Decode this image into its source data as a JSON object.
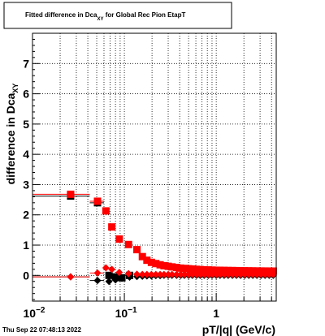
{
  "title": {
    "prefix": "Fitted difference in Dca",
    "subscript": "XY",
    "suffix": " for Global Rec Pion EtapT"
  },
  "y_axis": {
    "label": "difference in Dca",
    "subscript": "XY",
    "ticks": [
      "0",
      "1",
      "2",
      "3",
      "4",
      "5",
      "6",
      "7"
    ]
  },
  "x_axis": {
    "label": "pT/|q| (GeV/c)",
    "tick_labels": [
      {
        "base": "10",
        "exp": "−2"
      },
      {
        "base": "10",
        "exp": "−1"
      },
      {
        "base": "1",
        "exp": ""
      }
    ]
  },
  "timestamp": "Thu Sep 22 07:48:13 2022",
  "colors": {
    "red": "#ff0000",
    "black": "#000000",
    "grid": "#000000"
  },
  "chart_data": {
    "type": "scatter",
    "xscale": "log",
    "xlim": [
      0.01,
      4.5
    ],
    "ylim": [
      -0.85,
      8.0
    ],
    "grid": true,
    "legend": "none",
    "series": [
      {
        "color": "#000000",
        "marker": "square",
        "x": [
          0.026,
          0.051,
          0.068,
          0.08,
          0.094,
          0.114
        ],
        "y": [
          2.62,
          2.4,
          0.0,
          -0.05,
          -0.08,
          0.0
        ]
      },
      {
        "color": "#ff0000",
        "marker": "square",
        "x": [
          0.026,
          0.051,
          0.063,
          0.073,
          0.088,
          0.111,
          0.137,
          0.157,
          0.176,
          0.197,
          0.22,
          0.245,
          0.27,
          0.3,
          0.33,
          0.37,
          0.41,
          0.45,
          0.5,
          0.55,
          0.61,
          0.67,
          0.74,
          0.82,
          0.9,
          1.0,
          1.1,
          1.22,
          1.35,
          1.5,
          1.66,
          1.84,
          2.04,
          2.26,
          2.5,
          2.77,
          3.07,
          3.4,
          3.77,
          4.18
        ],
        "y": [
          2.68,
          2.45,
          2.13,
          1.6,
          1.2,
          1.02,
          0.85,
          0.62,
          0.5,
          0.43,
          0.39,
          0.35,
          0.32,
          0.3,
          0.28,
          0.26,
          0.24,
          0.23,
          0.22,
          0.21,
          0.2,
          0.19,
          0.185,
          0.18,
          0.175,
          0.17,
          0.168,
          0.165,
          0.162,
          0.16,
          0.158,
          0.155,
          0.152,
          0.15,
          0.148,
          0.146,
          0.145,
          0.144,
          0.143,
          0.142
        ]
      },
      {
        "color": "#000000",
        "marker": "diamond",
        "x": [
          0.026,
          0.051,
          0.068,
          0.08,
          0.094,
          0.114,
          0.137,
          0.157,
          0.176,
          0.197,
          0.22,
          0.245,
          0.27,
          0.3,
          0.33,
          0.37,
          0.41,
          0.45,
          0.5,
          0.55,
          0.61,
          0.67,
          0.74,
          0.82,
          0.9,
          1.0,
          1.1,
          1.22,
          1.35,
          1.5,
          1.66,
          1.84,
          2.04,
          2.26,
          2.5,
          2.77,
          3.07,
          3.4,
          3.77,
          4.18
        ],
        "y": [
          -0.05,
          -0.17,
          -0.2,
          -0.15,
          -0.1,
          -0.06,
          -0.04,
          -0.03,
          -0.02,
          -0.02,
          -0.01,
          -0.01,
          0.0,
          0.0,
          0.0,
          0.0,
          0.0,
          0.0,
          0.0,
          0.0,
          0.0,
          0.0,
          0.0,
          0.0,
          0.0,
          0.0,
          0.0,
          0.0,
          0.0,
          0.0,
          0.0,
          0.0,
          0.0,
          0.0,
          0.0,
          0.0,
          0.0,
          0.0,
          0.0,
          0.0
        ]
      },
      {
        "color": "#ff0000",
        "marker": "diamond",
        "x": [
          0.026,
          0.051,
          0.063,
          0.073,
          0.088,
          0.111,
          0.137,
          0.157,
          0.176,
          0.197,
          0.22,
          0.245,
          0.27,
          0.3,
          0.33,
          0.37,
          0.41,
          0.45,
          0.5,
          0.55,
          0.61,
          0.67,
          0.74,
          0.82,
          0.9,
          1.0,
          1.1,
          1.22,
          1.35,
          1.5,
          1.66,
          1.84,
          2.04,
          2.26,
          2.5,
          2.77,
          3.07,
          3.4,
          3.77,
          4.18
        ],
        "y": [
          -0.05,
          0.08,
          0.25,
          0.2,
          0.1,
          0.06,
          0.04,
          0.03,
          0.03,
          0.03,
          0.03,
          0.03,
          0.03,
          0.03,
          0.03,
          0.03,
          0.03,
          0.03,
          0.03,
          0.03,
          0.03,
          0.03,
          0.03,
          0.03,
          0.03,
          0.03,
          0.03,
          0.03,
          0.03,
          0.03,
          0.03,
          0.03,
          0.03,
          0.03,
          0.03,
          0.03,
          0.03,
          0.03,
          0.03,
          0.03
        ]
      }
    ],
    "bins": {
      "edges": [
        0.01,
        0.042,
        0.06
      ]
    }
  }
}
